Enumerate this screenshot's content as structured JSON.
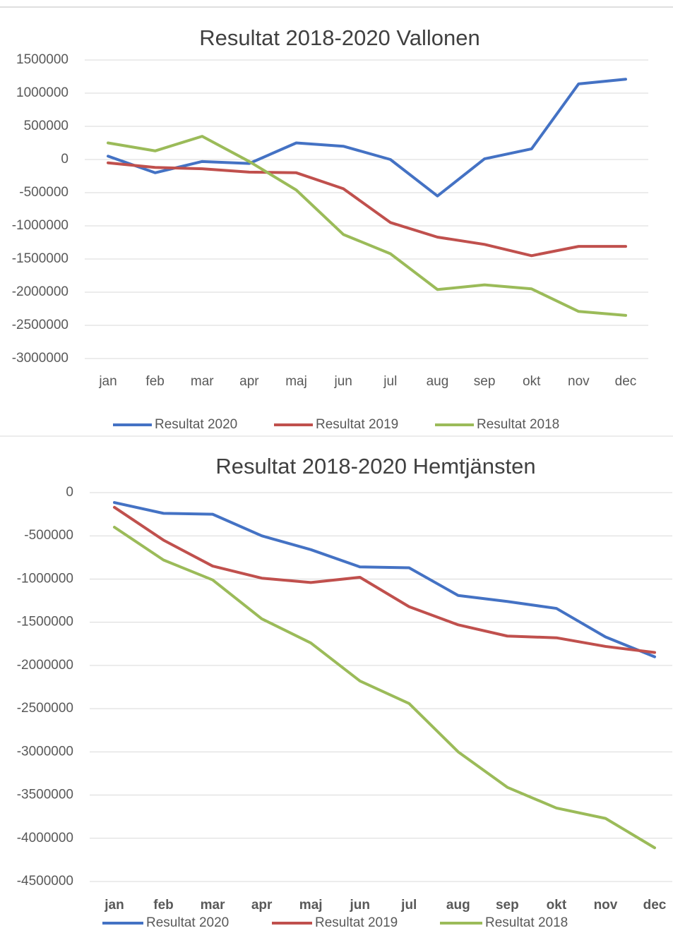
{
  "chart_data": [
    {
      "type": "line",
      "title": "Resultat 2018-2020 Vallonen",
      "categories": [
        "jan",
        "feb",
        "mar",
        "apr",
        "maj",
        "jun",
        "jul",
        "aug",
        "sep",
        "okt",
        "nov",
        "dec"
      ],
      "series": [
        {
          "name": "Resultat 2020",
          "color": "#4472c4",
          "values": [
            50000,
            -200000,
            -30000,
            -60000,
            250000,
            200000,
            0,
            -550000,
            10000,
            160000,
            1140000,
            1210000
          ]
        },
        {
          "name": "Resultat 2019",
          "color": "#c0504d",
          "values": [
            -50000,
            -120000,
            -140000,
            -190000,
            -200000,
            -440000,
            -950000,
            -1170000,
            -1280000,
            -1450000,
            -1310000,
            -1310000
          ]
        },
        {
          "name": "Resultat 2018",
          "color": "#9bbb59",
          "values": [
            250000,
            130000,
            350000,
            -30000,
            -460000,
            -1130000,
            -1420000,
            -1960000,
            -1890000,
            -1950000,
            -2290000,
            -2350000
          ]
        }
      ],
      "ylim": [
        -3000000,
        1500000
      ],
      "yticks": [
        1500000,
        1000000,
        500000,
        0,
        -500000,
        -1000000,
        -1500000,
        -2000000,
        -2500000,
        -3000000
      ],
      "grid": true,
      "legend": "bottom"
    },
    {
      "type": "line",
      "title": "Resultat 2018-2020 Hemtjänsten",
      "categories": [
        "jan",
        "feb",
        "mar",
        "apr",
        "maj",
        "jun",
        "jul",
        "aug",
        "sep",
        "okt",
        "nov",
        "dec"
      ],
      "series": [
        {
          "name": "Resultat 2020",
          "color": "#4472c4",
          "values": [
            -115000,
            -240000,
            -250000,
            -500000,
            -660000,
            -860000,
            -870000,
            -1190000,
            -1260000,
            -1340000,
            -1670000,
            -1900000
          ]
        },
        {
          "name": "Resultat 2019",
          "color": "#c0504d",
          "values": [
            -170000,
            -550000,
            -850000,
            -990000,
            -1040000,
            -980000,
            -1320000,
            -1530000,
            -1660000,
            -1680000,
            -1780000,
            -1850000
          ]
        },
        {
          "name": "Resultat 2018",
          "color": "#9bbb59",
          "values": [
            -400000,
            -780000,
            -1010000,
            -1460000,
            -1740000,
            -2180000,
            -2440000,
            -3000000,
            -3410000,
            -3650000,
            -3770000,
            -4110000
          ]
        }
      ],
      "ylim": [
        -4500000,
        0
      ],
      "yticks": [
        0,
        -500000,
        -1000000,
        -1500000,
        -2000000,
        -2500000,
        -3000000,
        -3500000,
        -4000000,
        -4500000
      ],
      "grid": true,
      "legend": "bottom"
    }
  ]
}
